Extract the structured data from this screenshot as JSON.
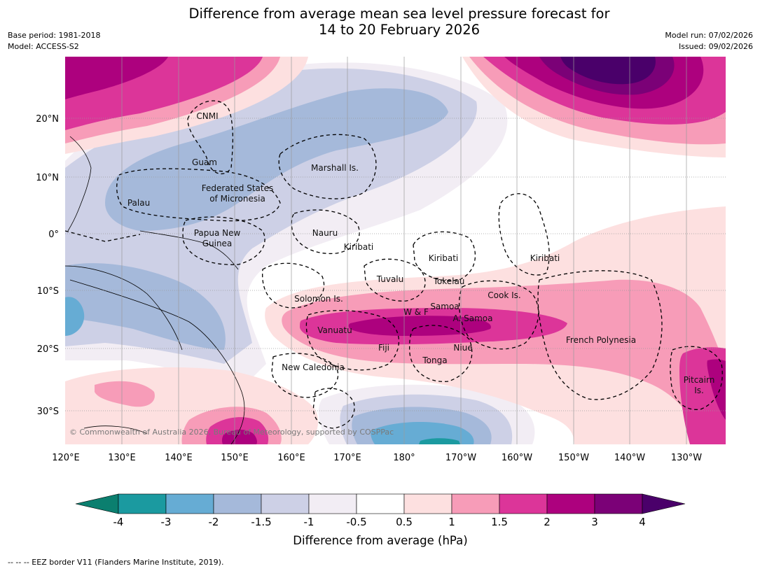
{
  "header": {
    "title_line1": "Difference from average mean sea level pressure forecast for",
    "title_line2": "14 to 20 February 2026",
    "base_period": "Base period: 1981-2018",
    "model": "Model: ACCESS-S2",
    "model_run": "Model run: 07/02/2026",
    "issued": "Issued: 09/02/2026"
  },
  "map": {
    "lat_labels": [
      "20°N",
      "10°N",
      "0°",
      "10°S",
      "20°S",
      "30°S"
    ],
    "lon_labels": [
      "120°E",
      "130°E",
      "140°E",
      "150°E",
      "160°E",
      "170°E",
      "180°",
      "170°W",
      "160°W",
      "150°W",
      "140°W",
      "130°W"
    ],
    "regions": {
      "cnmi": "CNMI",
      "guam": "Guam",
      "marshall": "Marshall Is.",
      "fsm_1": "Federated States",
      "fsm_2": "of Micronesia",
      "palau": "Palau",
      "png_1": "Papua New",
      "png_2": "Guinea",
      "nauru": "Nauru",
      "kiribati_w": "Kiribati",
      "kiribati_c": "Kiribati",
      "kiribati_e": "Kiribati",
      "tuvalu": "Tuvalu",
      "tokelau": "Tokelau",
      "solomon": "Solomon Is.",
      "wf": "W & F",
      "samoa": "Samoa",
      "asamoa": "A. Samoa",
      "cook": "Cook Is.",
      "vanuatu": "Vanuatu",
      "fiji": "Fiji",
      "niue": "Niue",
      "tonga": "Tonga",
      "fpoly": "French Polynesia",
      "newcal": "New Caledonia",
      "pitcairn_1": "Pitcairn",
      "pitcairn_2": "Is."
    },
    "copyright": "© Commonwealth of Australia 2026, Bureau of Meteorology, supported by COSPPac"
  },
  "colorbar": {
    "title": "Difference from average (hPa)",
    "tick_labels": [
      "-4",
      "-3",
      "-2",
      "-1.5",
      "-1",
      "-0.5",
      "0.5",
      "1",
      "1.5",
      "2",
      "3",
      "4"
    ],
    "colors": [
      "#0b7f6f",
      "#1b9aa0",
      "#66acd4",
      "#a5b9da",
      "#cdd0e6",
      "#f2edf4",
      "#ffffff",
      "#fde0e0",
      "#f79cb8",
      "#dc3599",
      "#ad017e",
      "#7b0177",
      "#4a006a"
    ]
  },
  "footer": {
    "eez_note": "--  --  -- EEZ border V11 (Flanders Marine Institute, 2019)."
  }
}
